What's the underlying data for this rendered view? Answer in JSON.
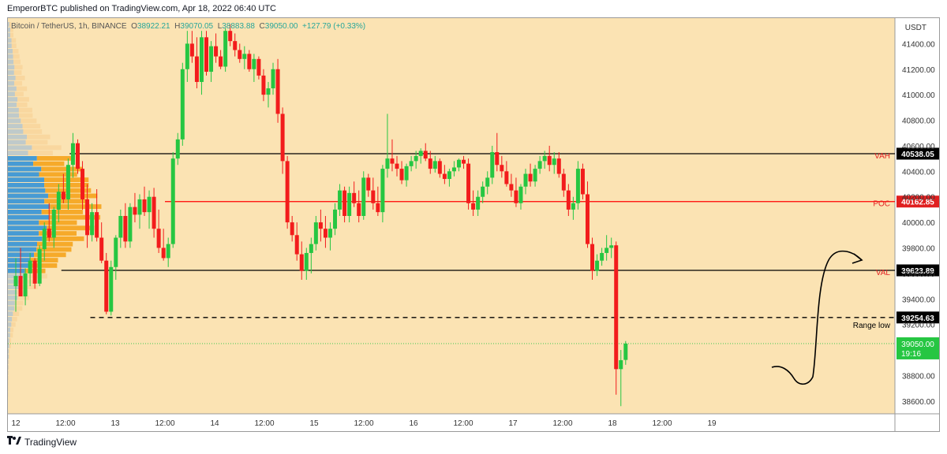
{
  "header": {
    "published_text": "EmperorBTC published on TradingView.com, Apr 18, 2022 06:40 UTC"
  },
  "legend": {
    "symbol": "Bitcoin / TetherUS, 1h, BINANCE",
    "o_label": "O",
    "o_value": "38922.21",
    "h_label": "H",
    "h_value": "39070.05",
    "l_label": "L",
    "l_value": "38883.88",
    "c_label": "C",
    "c_value": "39050.00",
    "change": "+127.79 (+0.33%)"
  },
  "footer": {
    "brand": "TradingView"
  },
  "colors": {
    "background": "#fbe3b3",
    "up": "#26c642",
    "down": "#f21c1c",
    "vp_blue": "#3d97d6",
    "vp_orange": "#f6a623",
    "vp_grey": "#b8c6cc",
    "poc_line": "#ff0000",
    "level_line": "#000000"
  },
  "chart_data": {
    "type": "candlestick",
    "currency_label": "USDT",
    "ylim": [
      38500,
      41600
    ],
    "yticks": [
      "41400.00",
      "41200.00",
      "41000.00",
      "40800.00",
      "40600.00",
      "40400.00",
      "40200.00",
      "40000.00",
      "39800.00",
      "39600.00",
      "39400.00",
      "39200.00",
      "38800.00",
      "38600.00"
    ],
    "ytick_values": [
      41400,
      41200,
      41000,
      40800,
      40600,
      40400,
      40200,
      40000,
      39800,
      39600,
      39400,
      39200,
      38800,
      38600
    ],
    "xticks": [
      "12",
      "12:00",
      "13",
      "12:00",
      "14",
      "12:00",
      "15",
      "12:00",
      "16",
      "12:00",
      "17",
      "12:00",
      "18",
      "12:00",
      "19"
    ],
    "xtick_hours": [
      0,
      12,
      24,
      36,
      48,
      60,
      72,
      84,
      96,
      108,
      120,
      132,
      144,
      156,
      168
    ],
    "levels": [
      {
        "name": "VAH",
        "price": 40538.05,
        "label": "40538.05",
        "style": "solid",
        "color": "#000000",
        "start_hour": 13
      },
      {
        "name": "POC",
        "price": 40162.85,
        "label": "40162.85",
        "style": "solid",
        "color": "#ff0000",
        "start_hour": 36
      },
      {
        "name": "VAL",
        "price": 39623.89,
        "label": "39623.89",
        "style": "solid",
        "color": "#000000",
        "start_hour": 11
      },
      {
        "name": "Range low",
        "price": 39254.63,
        "label": "39254.63",
        "style": "dashed",
        "color": "#000000",
        "start_hour": 18
      }
    ],
    "last_price": {
      "label": "39050.00",
      "countdown": "19:16",
      "price": 39050.0
    },
    "candles_start_hour": 0,
    "candles": [
      [
        39500,
        39720,
        39300,
        39580
      ],
      [
        39580,
        39800,
        39450,
        39420
      ],
      [
        39420,
        39640,
        39350,
        39600
      ],
      [
        39600,
        39760,
        39500,
        39700
      ],
      [
        39700,
        39720,
        39480,
        39520
      ],
      [
        39520,
        39820,
        39500,
        39790
      ],
      [
        39790,
        40000,
        39700,
        39950
      ],
      [
        39950,
        40150,
        39850,
        39880
      ],
      [
        39880,
        40120,
        39800,
        40100
      ],
      [
        40100,
        40300,
        40000,
        40240
      ],
      [
        40240,
        40380,
        40150,
        40180
      ],
      [
        40180,
        40500,
        40100,
        40450
      ],
      [
        40450,
        40700,
        40350,
        40620
      ],
      [
        40620,
        40650,
        40380,
        40420
      ],
      [
        40420,
        40480,
        40100,
        40180
      ],
      [
        40180,
        40300,
        39800,
        39900
      ],
      [
        39900,
        40150,
        39850,
        40080
      ],
      [
        40080,
        40260,
        39850,
        39880
      ],
      [
        39880,
        40000,
        39680,
        39700
      ],
      [
        39700,
        39760,
        39280,
        39300
      ],
      [
        39300,
        39700,
        39270,
        39650
      ],
      [
        39650,
        39900,
        39550,
        39880
      ],
      [
        39880,
        40100,
        39800,
        40050
      ],
      [
        40050,
        40150,
        39800,
        39850
      ],
      [
        39850,
        40150,
        39800,
        40120
      ],
      [
        40120,
        40230,
        40000,
        40060
      ],
      [
        40060,
        40220,
        39950,
        40180
      ],
      [
        40180,
        40280,
        40050,
        40080
      ],
      [
        40080,
        40250,
        39950,
        40200
      ],
      [
        40200,
        40270,
        39880,
        39950
      ],
      [
        39950,
        40100,
        39760,
        39800
      ],
      [
        39800,
        39950,
        39700,
        39720
      ],
      [
        39720,
        39880,
        39650,
        39830
      ],
      [
        39830,
        40550,
        39800,
        40500
      ],
      [
        40500,
        40700,
        40450,
        40650
      ],
      [
        40650,
        41250,
        40600,
        41200
      ],
      [
        41200,
        41500,
        41100,
        41400
      ],
      [
        41400,
        41500,
        41250,
        41300
      ],
      [
        41300,
        41450,
        41050,
        41100
      ],
      [
        41100,
        41500,
        41000,
        41450
      ],
      [
        41450,
        41500,
        41150,
        41180
      ],
      [
        41180,
        41420,
        41100,
        41380
      ],
      [
        41380,
        41480,
        41250,
        41300
      ],
      [
        41300,
        41350,
        41200,
        41220
      ],
      [
        41220,
        41520,
        41180,
        41500
      ],
      [
        41500,
        41550,
        41380,
        41420
      ],
      [
        41420,
        41480,
        41300,
        41350
      ],
      [
        41350,
        41400,
        41250,
        41280
      ],
      [
        41280,
        41380,
        41200,
        41320
      ],
      [
        41320,
        41350,
        41180,
        41200
      ],
      [
        41200,
        41320,
        41100,
        41280
      ],
      [
        41280,
        41300,
        41120,
        41150
      ],
      [
        41150,
        41200,
        40950,
        41000
      ],
      [
        41000,
        41100,
        40900,
        41050
      ],
      [
        41050,
        41250,
        41000,
        41200
      ],
      [
        41200,
        41280,
        40780,
        40850
      ],
      [
        40850,
        40900,
        40380,
        40480
      ],
      [
        40480,
        40520,
        39950,
        40000
      ],
      [
        40000,
        40050,
        39850,
        39900
      ],
      [
        39900,
        40000,
        39700,
        39750
      ],
      [
        39750,
        39850,
        39550,
        39620
      ],
      [
        39620,
        39800,
        39550,
        39760
      ],
      [
        39760,
        39880,
        39600,
        39830
      ],
      [
        39830,
        40050,
        39780,
        40000
      ],
      [
        40000,
        40100,
        39850,
        39950
      ],
      [
        39950,
        40050,
        39800,
        39880
      ],
      [
        39880,
        40000,
        39780,
        39950
      ],
      [
        39950,
        40150,
        39900,
        40100
      ],
      [
        40100,
        40300,
        40050,
        40250
      ],
      [
        40250,
        40280,
        40000,
        40050
      ],
      [
        40050,
        40280,
        40000,
        40230
      ],
      [
        40230,
        40320,
        40120,
        40150
      ],
      [
        40150,
        40250,
        40000,
        40050
      ],
      [
        40050,
        40400,
        40020,
        40350
      ],
      [
        40350,
        40380,
        40200,
        40250
      ],
      [
        40250,
        40350,
        40100,
        40150
      ],
      [
        40150,
        40280,
        40050,
        40080
      ],
      [
        40080,
        40450,
        40000,
        40420
      ],
      [
        40420,
        40850,
        40350,
        40500
      ],
      [
        40500,
        40650,
        40400,
        40460
      ],
      [
        40460,
        40520,
        40360,
        40420
      ],
      [
        40420,
        40480,
        40300,
        40330
      ],
      [
        40330,
        40460,
        40280,
        40440
      ],
      [
        40440,
        40520,
        40400,
        40480
      ],
      [
        40480,
        40560,
        40420,
        40520
      ],
      [
        40520,
        40580,
        40460,
        40560
      ],
      [
        40560,
        40620,
        40480,
        40500
      ],
      [
        40500,
        40560,
        40380,
        40420
      ],
      [
        40420,
        40520,
        40390,
        40480
      ],
      [
        40480,
        40500,
        40350,
        40380
      ],
      [
        40380,
        40450,
        40300,
        40340
      ],
      [
        40340,
        40420,
        40280,
        40400
      ],
      [
        40400,
        40480,
        40360,
        40430
      ],
      [
        40430,
        40500,
        40400,
        40490
      ],
      [
        40490,
        40520,
        40420,
        40460
      ],
      [
        40460,
        40500,
        40100,
        40150
      ],
      [
        40150,
        40250,
        40050,
        40100
      ],
      [
        40100,
        40250,
        40050,
        40200
      ],
      [
        40200,
        40320,
        40150,
        40280
      ],
      [
        40280,
        40400,
        40220,
        40350
      ],
      [
        40350,
        40600,
        40300,
        40550
      ],
      [
        40550,
        40700,
        40400,
        40450
      ],
      [
        40450,
        40520,
        40350,
        40400
      ],
      [
        40400,
        40480,
        40280,
        40300
      ],
      [
        40300,
        40380,
        40200,
        40250
      ],
      [
        40250,
        40350,
        40120,
        40150
      ],
      [
        40150,
        40300,
        40100,
        40280
      ],
      [
        40280,
        40420,
        40220,
        40380
      ],
      [
        40380,
        40460,
        40280,
        40320
      ],
      [
        40320,
        40450,
        40280,
        40420
      ],
      [
        40420,
        40520,
        40380,
        40480
      ],
      [
        40480,
        40560,
        40420,
        40520
      ],
      [
        40520,
        40600,
        40400,
        40450
      ],
      [
        40450,
        40550,
        40380,
        40500
      ],
      [
        40500,
        40550,
        40350,
        40380
      ],
      [
        40380,
        40420,
        40200,
        40250
      ],
      [
        40250,
        40300,
        40050,
        40100
      ],
      [
        40100,
        40200,
        40020,
        40150
      ],
      [
        40150,
        40480,
        40100,
        40420
      ],
      [
        40420,
        40460,
        40180,
        40220
      ],
      [
        40220,
        40320,
        39800,
        39830
      ],
      [
        39830,
        39880,
        39550,
        39620
      ],
      [
        39620,
        39750,
        39580,
        39700
      ],
      [
        39700,
        39800,
        39660,
        39760
      ],
      [
        39760,
        39900,
        39700,
        39800
      ],
      [
        39800,
        39880,
        39720,
        39820
      ],
      [
        39820,
        39850,
        38650,
        38850
      ],
      [
        38850,
        39000,
        38560,
        38920
      ],
      [
        38922.21,
        39070.05,
        38883.88,
        39050.0
      ]
    ]
  }
}
